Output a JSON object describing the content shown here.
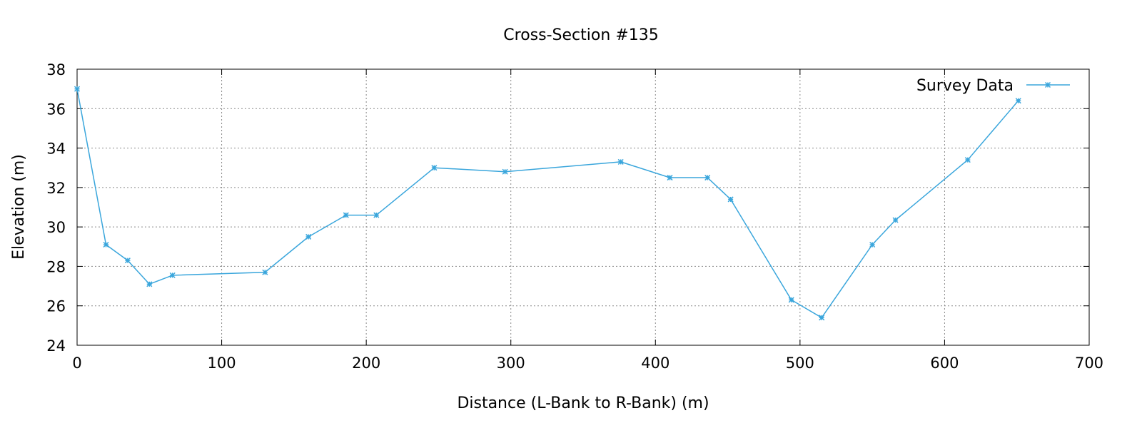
{
  "chart_data": {
    "type": "line",
    "title": "Cross-Section #135",
    "xlabel": "Distance (L-Bank to R-Bank) (m)",
    "ylabel": "Elevation (m)",
    "xlim": [
      0,
      700
    ],
    "ylim": [
      24,
      38
    ],
    "xticks": [
      0,
      100,
      200,
      300,
      400,
      500,
      600,
      700
    ],
    "yticks": [
      24,
      26,
      28,
      30,
      32,
      34,
      36,
      38
    ],
    "grid": true,
    "legend_position": "top-right",
    "series": [
      {
        "name": "Survey Data",
        "color": "#3aa6dc",
        "marker": "star",
        "x": [
          0,
          20,
          35,
          50,
          66,
          130,
          160,
          186,
          207,
          247,
          296,
          376,
          410,
          436,
          452,
          494,
          515,
          550,
          566,
          616,
          651
        ],
        "y": [
          37.0,
          29.1,
          28.3,
          27.1,
          27.55,
          27.7,
          29.5,
          30.6,
          30.6,
          33.0,
          32.8,
          33.3,
          32.5,
          32.5,
          31.4,
          26.3,
          25.4,
          29.1,
          30.35,
          33.4,
          36.4
        ]
      }
    ]
  }
}
